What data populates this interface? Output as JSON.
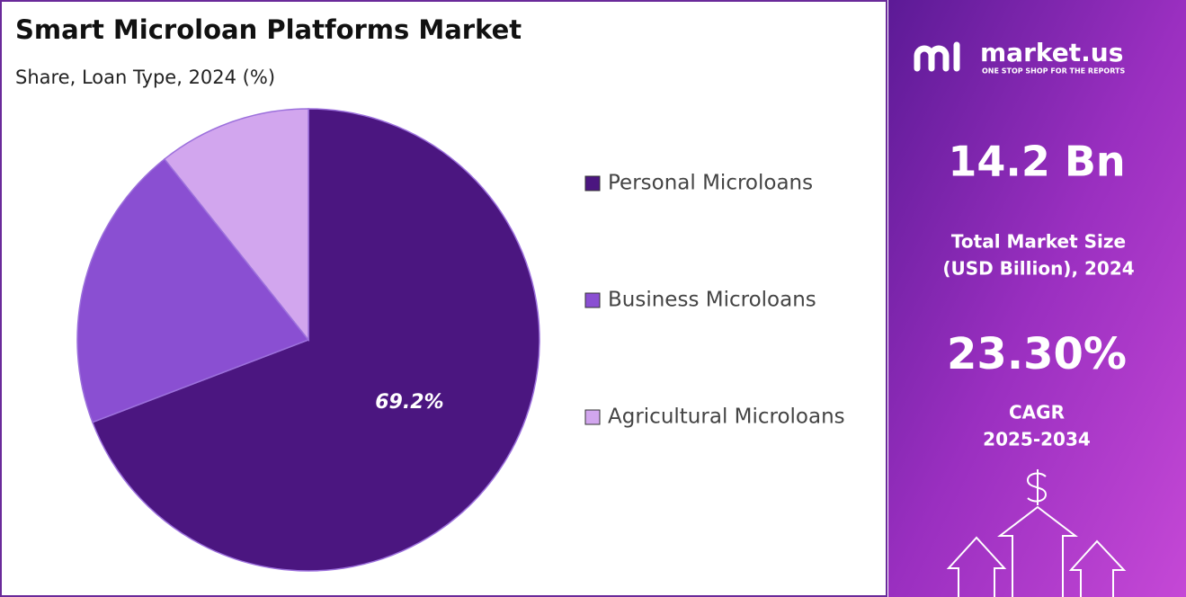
{
  "chart_data": {
    "type": "pie",
    "title": "Smart Microloan Platforms Market",
    "subtitle": "Share, Loan Type, 2024 (%)",
    "categories": [
      "Personal Microloans",
      "Business Microloans",
      "Agricultural Microloans"
    ],
    "values": [
      69.2,
      20.1,
      10.7
    ],
    "value_labels": [
      "69.2%",
      null,
      null
    ],
    "colors": [
      "#4b1680",
      "#8a4fd2",
      "#d2a6ee"
    ],
    "legend": "right"
  },
  "panel": {
    "brand": "market.us",
    "tagline": "ONE STOP SHOP FOR THE REPORTS",
    "market_size": "14.2 Bn",
    "market_size_label": [
      "Total Market Size",
      "(USD Billion), 2024"
    ],
    "cagr": "23.30%",
    "cagr_label": [
      "CAGR",
      "2025-2034"
    ]
  }
}
